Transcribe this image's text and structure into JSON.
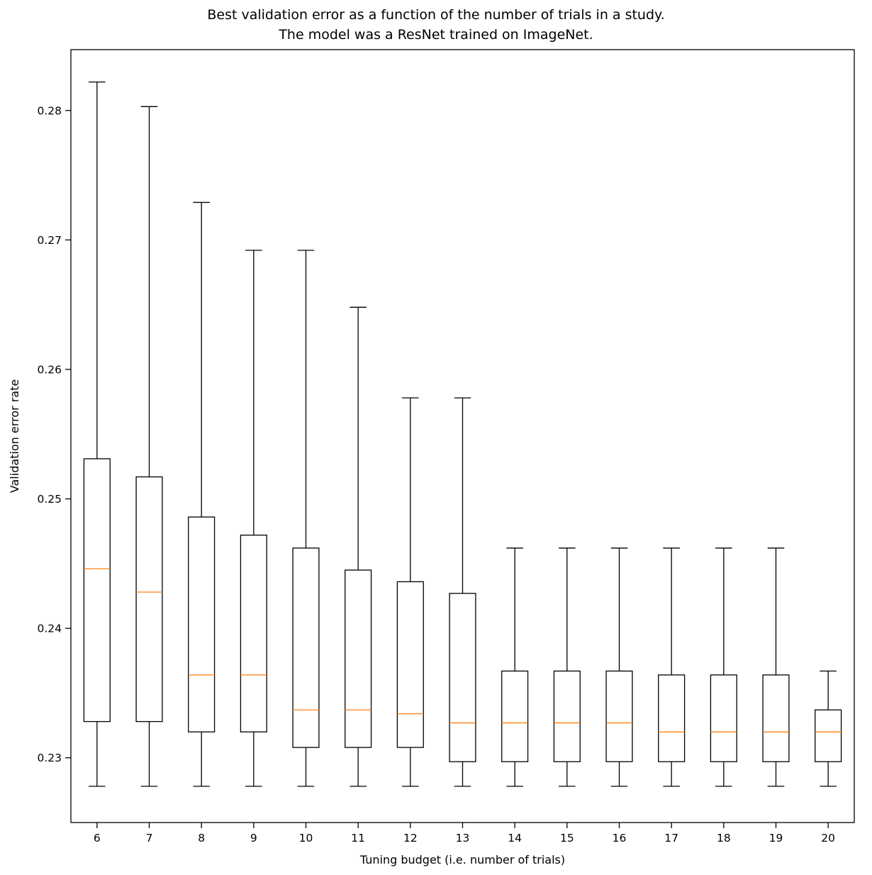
{
  "chart_data": {
    "type": "boxplot",
    "title": "Best validation error as a function of the number of trials in a study.\nThe model was a ResNet trained on ImageNet.",
    "xlabel": "Tuning budget (i.e. number of trials)",
    "ylabel": "Validation error rate",
    "categories": [
      "6",
      "7",
      "8",
      "9",
      "10",
      "11",
      "12",
      "13",
      "14",
      "15",
      "16",
      "17",
      "18",
      "19",
      "20"
    ],
    "ylim": [
      0.225,
      0.2847
    ],
    "yticks": [
      0.23,
      0.24,
      0.25,
      0.26,
      0.27,
      0.28
    ],
    "grid": false,
    "legend": "none",
    "box_color": "#000000",
    "median_color": "#ff7f0e",
    "boxes": [
      {
        "whislo": 0.2278,
        "q1": 0.2328,
        "med": 0.2446,
        "q3": 0.2531,
        "whishi": 0.2822
      },
      {
        "whislo": 0.2278,
        "q1": 0.2328,
        "med": 0.2428,
        "q3": 0.2517,
        "whishi": 0.2803
      },
      {
        "whislo": 0.2278,
        "q1": 0.232,
        "med": 0.2364,
        "q3": 0.2486,
        "whishi": 0.2729
      },
      {
        "whislo": 0.2278,
        "q1": 0.232,
        "med": 0.2364,
        "q3": 0.2472,
        "whishi": 0.2692
      },
      {
        "whislo": 0.2278,
        "q1": 0.2308,
        "med": 0.2337,
        "q3": 0.2462,
        "whishi": 0.2692
      },
      {
        "whislo": 0.2278,
        "q1": 0.2308,
        "med": 0.2337,
        "q3": 0.2445,
        "whishi": 0.2648
      },
      {
        "whislo": 0.2278,
        "q1": 0.2308,
        "med": 0.2334,
        "q3": 0.2436,
        "whishi": 0.2578
      },
      {
        "whislo": 0.2278,
        "q1": 0.2297,
        "med": 0.2327,
        "q3": 0.2427,
        "whishi": 0.2578
      },
      {
        "whislo": 0.2278,
        "q1": 0.2297,
        "med": 0.2327,
        "q3": 0.2367,
        "whishi": 0.2462
      },
      {
        "whislo": 0.2278,
        "q1": 0.2297,
        "med": 0.2327,
        "q3": 0.2367,
        "whishi": 0.2462
      },
      {
        "whislo": 0.2278,
        "q1": 0.2297,
        "med": 0.2327,
        "q3": 0.2367,
        "whishi": 0.2462
      },
      {
        "whislo": 0.2278,
        "q1": 0.2297,
        "med": 0.232,
        "q3": 0.2364,
        "whishi": 0.2462
      },
      {
        "whislo": 0.2278,
        "q1": 0.2297,
        "med": 0.232,
        "q3": 0.2364,
        "whishi": 0.2462
      },
      {
        "whislo": 0.2278,
        "q1": 0.2297,
        "med": 0.232,
        "q3": 0.2364,
        "whishi": 0.2462
      },
      {
        "whislo": 0.2278,
        "q1": 0.2297,
        "med": 0.232,
        "q3": 0.2337,
        "whishi": 0.2367
      }
    ]
  }
}
